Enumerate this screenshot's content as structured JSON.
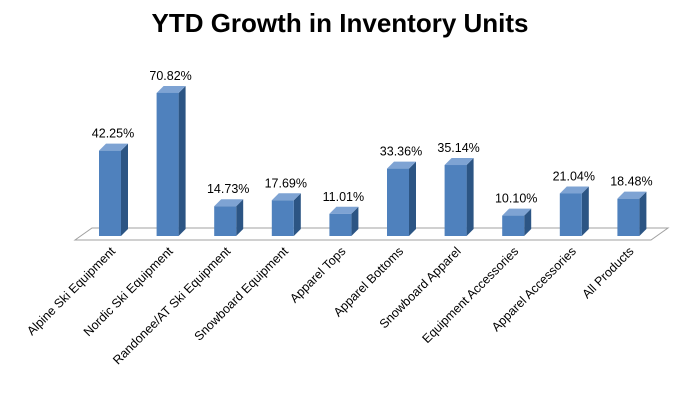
{
  "chart_data": {
    "type": "bar",
    "title": "YTD Growth in Inventory Units",
    "xlabel": "",
    "ylabel": "",
    "grid": false,
    "legend": "none",
    "style": "3d-column",
    "ylim": [
      0,
      80
    ],
    "categories": [
      "Alpine Ski Equipment",
      "Nordic Ski Equipment",
      "Randonee/AT Ski Equipment",
      "Snowboard Equipment",
      "Apparel Tops",
      "Apparel Bottoms",
      "Snowboard Apparel",
      "Equipment Accessories",
      "Apparel Accessories",
      "All Products"
    ],
    "values": [
      42.25,
      70.82,
      14.73,
      17.69,
      11.01,
      33.36,
      35.14,
      10.1,
      21.04,
      18.48
    ],
    "data_labels": [
      "42.25%",
      "70.82%",
      "14.73%",
      "17.69%",
      "11.01%",
      "33.36%",
      "35.14%",
      "10.10%",
      "21.04%",
      "18.48%"
    ],
    "colors": {
      "bar_front": "#4f81bd",
      "bar_side": "#2c5584",
      "bar_top": "#7ea3d3",
      "floor": "#ffffff",
      "floor_stroke": "#a0a0a0"
    }
  }
}
